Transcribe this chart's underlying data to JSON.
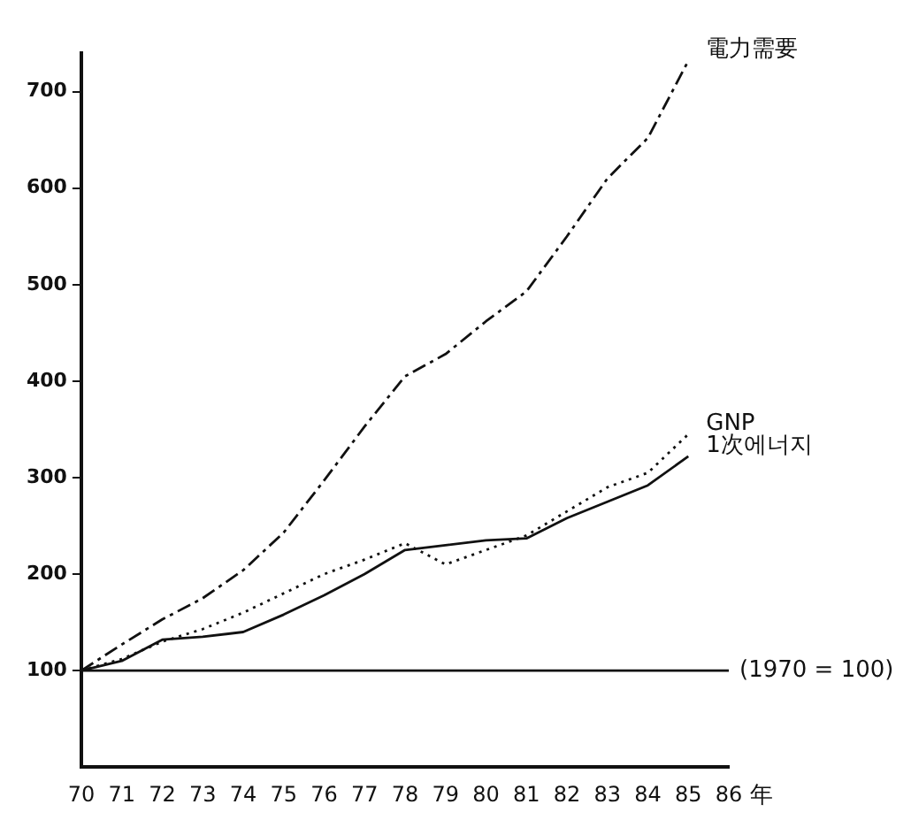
{
  "chart_data": {
    "type": "line",
    "xlabel": "年",
    "categories": [
      "70",
      "71",
      "72",
      "73",
      "74",
      "75",
      "76",
      "77",
      "78",
      "79",
      "80",
      "81",
      "82",
      "83",
      "84",
      "85",
      "86"
    ],
    "series": [
      {
        "name": "電力需要",
        "color": "#111111",
        "line_style": "dashed",
        "values": [
          100,
          127,
          153,
          175,
          204,
          243,
          297,
          353,
          405,
          428,
          462,
          493,
          550,
          610,
          652,
          732,
          null
        ]
      },
      {
        "name": "GNP",
        "color": "#111111",
        "line_style": "dotted",
        "values": [
          100,
          112,
          130,
          143,
          160,
          180,
          200,
          215,
          232,
          210,
          225,
          240,
          265,
          290,
          305,
          345,
          null
        ]
      },
      {
        "name": "1次에너지",
        "color": "#111111",
        "line_style": "solid",
        "values": [
          100,
          110,
          132,
          135,
          140,
          158,
          178,
          200,
          225,
          230,
          235,
          237,
          258,
          275,
          292,
          322,
          null
        ]
      }
    ],
    "ylim": [
      0,
      740
    ],
    "yticks": [
      100,
      200,
      300,
      400,
      500,
      600,
      700
    ],
    "ref_lines": [
      {
        "axis": "y",
        "value": 100,
        "label": "(1970 = 100)"
      }
    ],
    "grid": false,
    "legend": false,
    "marker": "none"
  }
}
